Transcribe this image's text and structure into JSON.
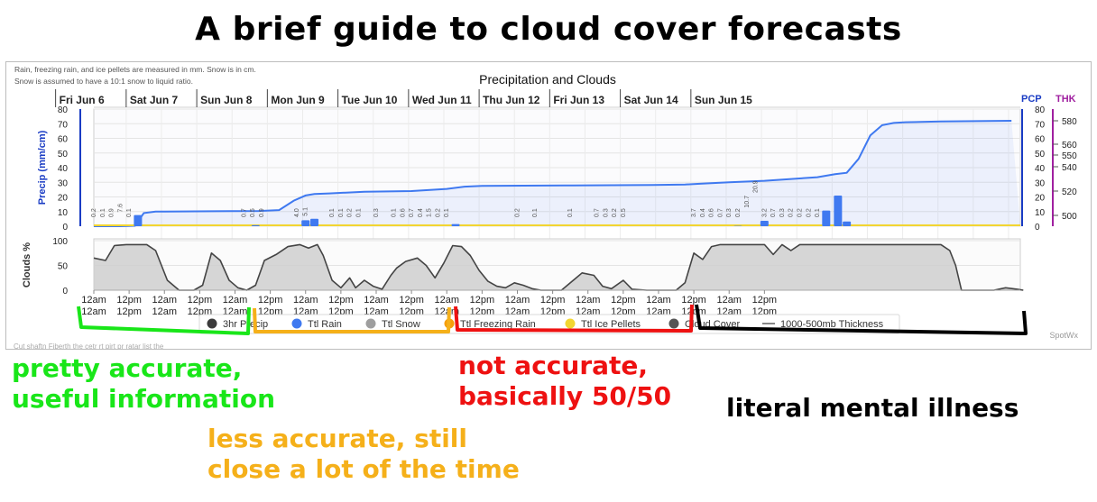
{
  "title": "A brief guide to cloud cover forecasts",
  "chart_data": {
    "type": "line",
    "title": "Precipitation and Clouds",
    "note": [
      "Rain, freezing rain, and ice pellets are measured in mm. Snow is in cm.",
      "Snow is assumed to have a 10:1 snow to liquid ratio."
    ],
    "days": [
      "Fri Jun 6",
      "Sat Jun 7",
      "Sun Jun 8",
      "Mon Jun 9",
      "Tue Jun 10",
      "Wed Jun 11",
      "Thu Jun 12",
      "Fri Jun 13",
      "Sat Jun 14",
      "Sun Jun 15"
    ],
    "pcp_label": "PCP",
    "thk_label": "THK",
    "precip": {
      "ylabel": "Precip (mm/cm)",
      "ylim": [
        0,
        80
      ],
      "yticks": [
        "80",
        "70",
        "60",
        "50",
        "40",
        "30",
        "20",
        "10",
        "0"
      ],
      "thk_ticks": [
        "580",
        "560",
        "550",
        "540",
        "520",
        "500"
      ],
      "ttl_rain_curve": [
        [
          0,
          0
        ],
        [
          9,
          0
        ],
        [
          12,
          0.2
        ],
        [
          14,
          0.3
        ],
        [
          17,
          9
        ],
        [
          21,
          10
        ],
        [
          24,
          10
        ],
        [
          40,
          10.2
        ],
        [
          56,
          10.4
        ],
        [
          63,
          11
        ],
        [
          68,
          17.5
        ],
        [
          72,
          21
        ],
        [
          75,
          22
        ],
        [
          80,
          22.4
        ],
        [
          92,
          23.5
        ],
        [
          108,
          24
        ],
        [
          120,
          25.5
        ],
        [
          126,
          27
        ],
        [
          132,
          27.5
        ],
        [
          160,
          27.8
        ],
        [
          190,
          28.2
        ],
        [
          201,
          28.5
        ],
        [
          206,
          29
        ],
        [
          216,
          30
        ],
        [
          228,
          31
        ],
        [
          246,
          33.5
        ],
        [
          252,
          35.5
        ],
        [
          256,
          36.5
        ],
        [
          260,
          46
        ],
        [
          264,
          62
        ],
        [
          268,
          69
        ],
        [
          272,
          70.5
        ],
        [
          276,
          71
        ],
        [
          288,
          71.5
        ],
        [
          312,
          72
        ]
      ],
      "bars_3hr": [
        [
          15,
          7.6
        ],
        [
          55,
          0.7
        ],
        [
          72,
          4.1
        ],
        [
          75,
          5.1
        ],
        [
          123,
          1.5
        ],
        [
          219,
          0.2
        ],
        [
          228,
          3.7
        ],
        [
          249,
          10.7
        ],
        [
          253,
          20.9
        ],
        [
          256,
          3.2
        ]
      ],
      "labels_3hr": [
        [
          0,
          "0.2"
        ],
        [
          3,
          "0.1"
        ],
        [
          6,
          "0.9"
        ],
        [
          9,
          "7.6"
        ],
        [
          12,
          "0.1"
        ],
        [
          51,
          "0.7"
        ],
        [
          54,
          "0.5"
        ],
        [
          57,
          "0.9"
        ],
        [
          69,
          "4.0"
        ],
        [
          72,
          "5.1"
        ],
        [
          81,
          "0.1"
        ],
        [
          84,
          "0.1"
        ],
        [
          87,
          "0.2"
        ],
        [
          90,
          "0.1"
        ],
        [
          96,
          "0.3"
        ],
        [
          102,
          "0.1"
        ],
        [
          105,
          "0.6"
        ],
        [
          108,
          "0.7"
        ],
        [
          111,
          "0.4"
        ],
        [
          114,
          "1.5"
        ],
        [
          117,
          "0.2"
        ],
        [
          120,
          "0.1"
        ],
        [
          144,
          "0.2"
        ],
        [
          150,
          "0.1"
        ],
        [
          162,
          "0.1"
        ],
        [
          171,
          "0.7"
        ],
        [
          174,
          "0.3"
        ],
        [
          177,
          "0.2"
        ],
        [
          180,
          "0.5"
        ],
        [
          204,
          "3.7"
        ],
        [
          207,
          "0.4"
        ],
        [
          210,
          "0.6"
        ],
        [
          213,
          "0.7"
        ],
        [
          216,
          "0.3"
        ],
        [
          219,
          "0.2"
        ],
        [
          222,
          "10.7"
        ],
        [
          225,
          "20.9"
        ],
        [
          228,
          "3.2"
        ],
        [
          231,
          "0.7"
        ],
        [
          234,
          "0.3"
        ],
        [
          237,
          "0.2"
        ],
        [
          240,
          "0.2"
        ],
        [
          243,
          "0.2"
        ],
        [
          246,
          "0.1"
        ]
      ]
    },
    "clouds": {
      "ylabel": "Clouds %",
      "ylim": [
        0,
        100
      ],
      "yticks": [
        "100",
        "50",
        "0"
      ],
      "cover": [
        [
          0,
          65
        ],
        [
          4,
          60
        ],
        [
          7,
          90
        ],
        [
          11,
          92
        ],
        [
          18,
          92
        ],
        [
          21,
          80
        ],
        [
          25,
          20
        ],
        [
          29,
          0
        ],
        [
          34,
          0
        ],
        [
          37,
          10
        ],
        [
          40,
          75
        ],
        [
          43,
          60
        ],
        [
          46,
          20
        ],
        [
          49,
          5
        ],
        [
          52,
          0
        ],
        [
          55,
          10
        ],
        [
          58,
          60
        ],
        [
          62,
          72
        ],
        [
          66,
          88
        ],
        [
          70,
          92
        ],
        [
          73,
          85
        ],
        [
          76,
          92
        ],
        [
          78,
          70
        ],
        [
          81,
          20
        ],
        [
          84,
          5
        ],
        [
          87,
          25
        ],
        [
          89,
          5
        ],
        [
          92,
          20
        ],
        [
          95,
          8
        ],
        [
          98,
          2
        ],
        [
          101,
          30
        ],
        [
          103,
          45
        ],
        [
          106,
          58
        ],
        [
          110,
          65
        ],
        [
          113,
          50
        ],
        [
          116,
          25
        ],
        [
          119,
          55
        ],
        [
          122,
          90
        ],
        [
          125,
          88
        ],
        [
          128,
          70
        ],
        [
          131,
          40
        ],
        [
          134,
          18
        ],
        [
          137,
          8
        ],
        [
          140,
          5
        ],
        [
          143,
          15
        ],
        [
          146,
          10
        ],
        [
          149,
          3
        ],
        [
          152,
          0
        ],
        [
          159,
          0
        ],
        [
          162,
          15
        ],
        [
          166,
          35
        ],
        [
          170,
          30
        ],
        [
          173,
          8
        ],
        [
          176,
          3
        ],
        [
          180,
          20
        ],
        [
          183,
          2
        ],
        [
          188,
          0
        ],
        [
          198,
          0
        ],
        [
          201,
          15
        ],
        [
          204,
          75
        ],
        [
          207,
          62
        ],
        [
          210,
          88
        ],
        [
          213,
          92
        ],
        [
          228,
          92
        ],
        [
          231,
          72
        ],
        [
          234,
          92
        ],
        [
          237,
          80
        ],
        [
          240,
          92
        ],
        [
          270,
          92
        ],
        [
          282,
          92
        ],
        [
          288,
          92
        ],
        [
          291,
          80
        ],
        [
          293,
          50
        ],
        [
          295,
          0
        ],
        [
          306,
          0
        ],
        [
          310,
          5
        ],
        [
          314,
          2
        ],
        [
          316,
          0
        ]
      ]
    },
    "time_ticks": [
      "12am",
      "12pm",
      "12am",
      "12pm",
      "12am",
      "12pm",
      "12am",
      "12pm",
      "12am",
      "12pm",
      "12am",
      "12pm",
      "12am",
      "12pm",
      "12am",
      "12pm",
      "12am",
      "12pm",
      "12am",
      "12pm"
    ],
    "legend": [
      {
        "name": "3hr Precip",
        "color": "#3b3b3b",
        "icon": "circle-icon"
      },
      {
        "name": "Ttl Rain",
        "color": "#3f79f0",
        "icon": "circle-icon"
      },
      {
        "name": "Ttl Snow",
        "color": "#9e9e9e",
        "icon": "circle-icon"
      },
      {
        "name": "Ttl Freezing Rain",
        "color": "#f59e0b",
        "icon": "circle-icon"
      },
      {
        "name": "Ttl Ice Pellets",
        "color": "#f2d531",
        "icon": "circle-icon"
      },
      {
        "name": "Cloud Cover",
        "color": "#555555",
        "icon": "circle-icon"
      },
      {
        "name": "1000-500mb Thickness",
        "color": "#888888",
        "icon": "line-icon"
      }
    ],
    "credit": "SpotWx",
    "cutoff_text": "Cut shaftn Fiberth the cetr rt pirt pr ratar list the"
  },
  "annotations": {
    "green": {
      "lines": [
        "pretty accurate,",
        "useful information"
      ],
      "color": "#19e619"
    },
    "orange": {
      "lines": [
        "less accurate, still",
        "close a lot of the time"
      ],
      "color": "#f5b01a"
    },
    "red": {
      "lines": [
        "not accurate,",
        "basically 50/50"
      ],
      "color": "#ee1111"
    },
    "black": {
      "lines": [
        "literal mental illness"
      ],
      "color": "#000000"
    }
  }
}
